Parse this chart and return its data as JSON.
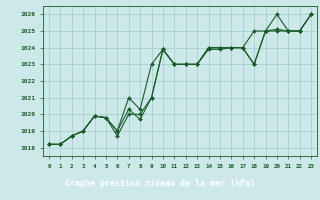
{
  "title": "Graphe pression niveau de la mer (hPa)",
  "bg_color": "#cce8e8",
  "label_bg_color": "#2d6b4e",
  "grid_color": "#aacfcf",
  "line_color": "#1a5c2a",
  "text_color": "#1a5c2a",
  "title_color": "#ffffff",
  "ylim": [
    1017.5,
    1026.5
  ],
  "xlim": [
    -0.5,
    23.5
  ],
  "yticks": [
    1018,
    1019,
    1020,
    1021,
    1022,
    1023,
    1024,
    1025,
    1026
  ],
  "xticks": [
    0,
    1,
    2,
    3,
    4,
    5,
    6,
    7,
    8,
    9,
    10,
    11,
    12,
    13,
    14,
    15,
    16,
    17,
    18,
    19,
    20,
    21,
    22,
    23
  ],
  "line1": [
    1018.2,
    1018.2,
    1018.7,
    1019.0,
    1019.9,
    1019.8,
    1019.0,
    1021.0,
    1020.3,
    1023.0,
    1023.9,
    1023.0,
    1023.0,
    1023.0,
    1023.9,
    1023.9,
    1024.0,
    1024.0,
    1023.0,
    1025.0,
    1025.1,
    1025.0,
    1025.0,
    1026.0
  ],
  "line2": [
    1018.2,
    1018.2,
    1018.7,
    1019.0,
    1019.9,
    1019.8,
    1018.7,
    1020.0,
    1020.0,
    1021.0,
    1023.9,
    1023.0,
    1023.0,
    1023.0,
    1024.0,
    1024.0,
    1024.0,
    1024.0,
    1025.0,
    1025.0,
    1026.0,
    1025.0,
    1025.0,
    1026.0
  ],
  "line3": [
    1018.2,
    1018.2,
    1018.7,
    1019.0,
    1019.9,
    1019.8,
    1019.0,
    1020.3,
    1019.7,
    1021.0,
    1023.9,
    1023.0,
    1023.0,
    1023.0,
    1024.0,
    1024.0,
    1024.0,
    1024.0,
    1023.0,
    1025.0,
    1025.0,
    1025.0,
    1025.0,
    1026.0
  ]
}
